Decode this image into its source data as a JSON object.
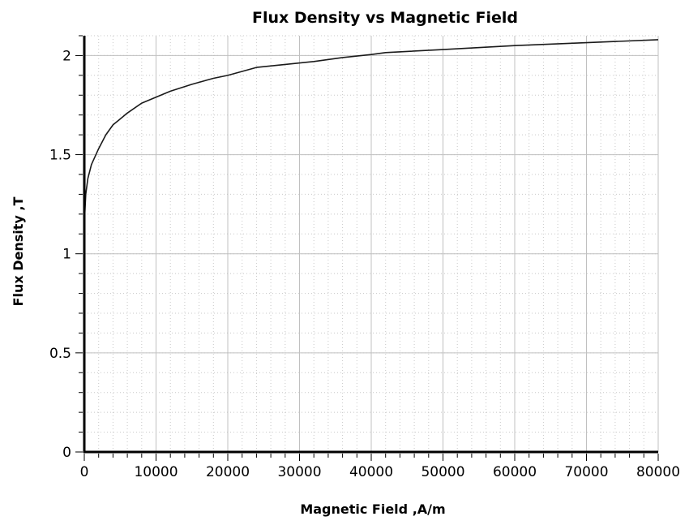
{
  "chart_data": {
    "type": "line",
    "title": "Flux Density vs Magnetic Field",
    "xlabel": "Magnetic Field ,A/m",
    "ylabel": "Flux Density ,T",
    "xlim": [
      0,
      80000
    ],
    "ylim": [
      0,
      2.1
    ],
    "x_ticks": [
      0,
      10000,
      20000,
      30000,
      40000,
      50000,
      60000,
      70000,
      80000
    ],
    "x_tick_labels": [
      "0",
      "10000",
      "20000",
      "30000",
      "40000",
      "50000",
      "60000",
      "70000",
      "80000"
    ],
    "y_ticks": [
      0,
      0.5,
      1,
      1.5,
      2
    ],
    "y_tick_labels": [
      "0",
      "0.5",
      "1",
      "1.5",
      "2"
    ],
    "grid": true,
    "minor_grid": true,
    "legend": "none",
    "colors": {
      "line": "#1a1a1a",
      "major_grid": "#c0c0c0",
      "minor_grid": "#c8c8c8",
      "axis": "#000000"
    },
    "series": [
      {
        "x": [
          0,
          200,
          500,
          1000,
          2000,
          3000,
          4000,
          5000,
          6000,
          8000,
          10000,
          12000,
          15000,
          18000,
          20000,
          24000,
          28000,
          32000,
          36000,
          40000,
          42000,
          50000,
          60000,
          70000,
          80000
        ],
        "y": [
          1.15,
          1.3,
          1.38,
          1.45,
          1.53,
          1.6,
          1.65,
          1.68,
          1.71,
          1.76,
          1.79,
          1.82,
          1.855,
          1.885,
          1.9,
          1.94,
          1.955,
          1.97,
          1.99,
          2.005,
          2.015,
          2.03,
          2.05,
          2.065,
          2.08
        ]
      }
    ]
  }
}
